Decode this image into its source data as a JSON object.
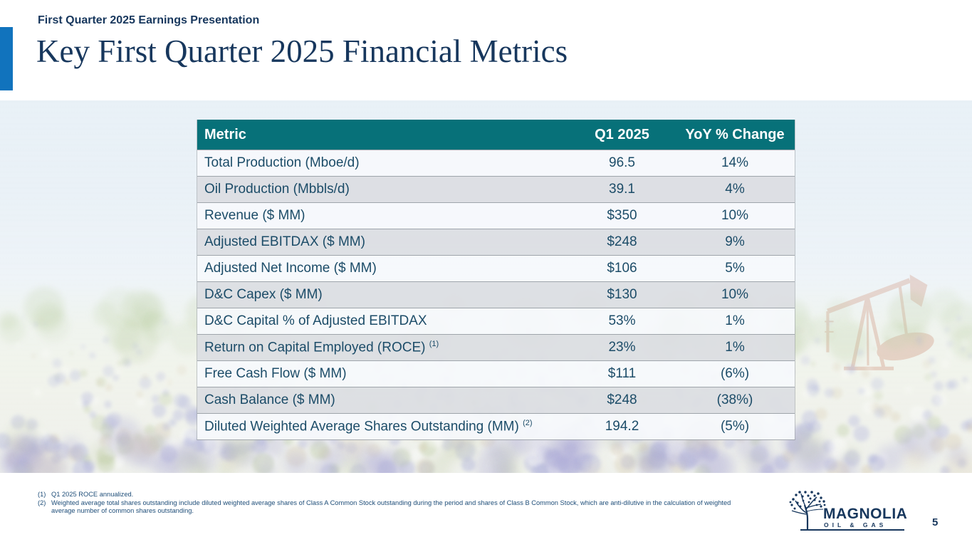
{
  "header": {
    "eyebrow": "First Quarter 2025 Earnings Presentation",
    "title": "Key First Quarter 2025 Financial Metrics"
  },
  "table": {
    "columns": [
      "Metric",
      "Q1 2025",
      "YoY % Change"
    ],
    "rows": [
      {
        "metric": "Total Production (Mboe/d)",
        "q1_2025": "96.5",
        "yoy_change": "14%"
      },
      {
        "metric": "Oil Production (Mbbls/d)",
        "q1_2025": "39.1",
        "yoy_change": "4%"
      },
      {
        "metric": "Revenue ($ MM)",
        "q1_2025": "$350",
        "yoy_change": "10%"
      },
      {
        "metric": "Adjusted EBITDAX ($ MM)",
        "q1_2025": "$248",
        "yoy_change": "9%"
      },
      {
        "metric": "Adjusted Net Income ($ MM)",
        "q1_2025": "$106",
        "yoy_change": "5%"
      },
      {
        "metric": "D&C Capex ($ MM)",
        "q1_2025": "$130",
        "yoy_change": "10%"
      },
      {
        "metric": "D&C Capital % of Adjusted EBITDAX",
        "q1_2025": "53%",
        "yoy_change": "1%"
      },
      {
        "metric": "Return on Capital Employed (ROCE)",
        "sup": "(1)",
        "q1_2025": "23%",
        "yoy_change": "1%"
      },
      {
        "metric": "Free Cash Flow ($ MM)",
        "q1_2025": "$111",
        "yoy_change": "(6%)"
      },
      {
        "metric": "Cash Balance ($ MM)",
        "q1_2025": "$248",
        "yoy_change": "(38%)"
      },
      {
        "metric": "Diluted Weighted Average Shares Outstanding (MM)",
        "sup": "(2)",
        "q1_2025": "194.2",
        "yoy_change": "(5%)"
      }
    ]
  },
  "footnotes": [
    {
      "num": "(1)",
      "text": "Q1 2025 ROCE annualized."
    },
    {
      "num": "(2)",
      "text": "Weighted average total shares outstanding include diluted weighted average shares of Class A Common Stock outstanding during the period and shares of Class B Common Stock, which are anti-dilutive in the calculation of weighted average number of common shares outstanding."
    }
  ],
  "footer": {
    "logo_name": "MAGNOLIA",
    "logo_sub": "OIL & GAS",
    "page_number": "5"
  },
  "colors": {
    "accent_blue": "#1173bd",
    "navy": "#17375d",
    "table_header_bg": "#077179",
    "table_text": "#1c4c68",
    "footnote_color": "#1f4e79",
    "row_light": "#f6f9fc",
    "row_dark": "#dbdee2",
    "sky": "#d7e6f1",
    "flower_purple": "#969bd2",
    "field_green": "#a5be82",
    "pumpjack_rust": "#b85c38"
  }
}
